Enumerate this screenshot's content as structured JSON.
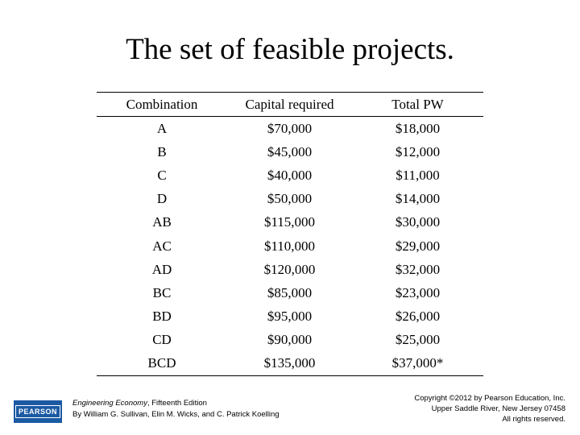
{
  "title": "The set of feasible projects.",
  "table": {
    "headers": [
      "Combination",
      "Capital required",
      "Total PW"
    ],
    "rows": [
      [
        "A",
        "$70,000",
        "$18,000"
      ],
      [
        "B",
        "$45,000",
        "$12,000"
      ],
      [
        "C",
        "$40,000",
        "$11,000"
      ],
      [
        "D",
        "$50,000",
        "$14,000"
      ],
      [
        "AB",
        "$115,000",
        "$30,000"
      ],
      [
        "AC",
        "$110,000",
        "$29,000"
      ],
      [
        "AD",
        "$120,000",
        "$32,000"
      ],
      [
        "BC",
        "$85,000",
        "$23,000"
      ],
      [
        "BD",
        "$95,000",
        "$26,000"
      ],
      [
        "CD",
        "$90,000",
        "$25,000"
      ],
      [
        "BCD",
        "$135,000",
        "$37,000*"
      ]
    ]
  },
  "footer": {
    "logo": "PEARSON",
    "book_title": "Engineering Economy",
    "book_edition": ", Fifteenth Edition",
    "authors": "By William G. Sullivan, Elin M. Wicks, and C. Patrick Koelling",
    "copyright": "Copyright ©2012 by Pearson Education, Inc.",
    "address": "Upper Saddle River, New Jersey 07458",
    "rights": "All rights reserved."
  }
}
